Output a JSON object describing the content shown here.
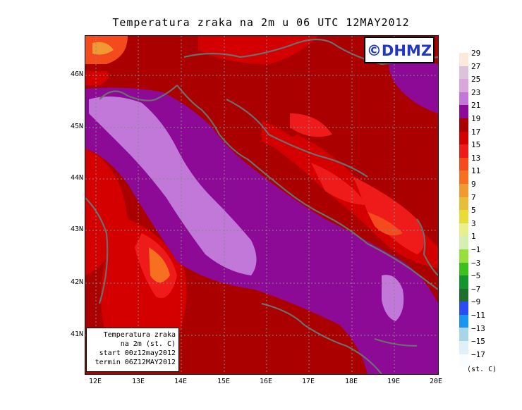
{
  "title": "Temperatura zraka na 2m u 06 UTC 12MAY2012",
  "logo": "©DHMZ",
  "infobox": {
    "line1": "Temperatura zraka",
    "line2": "na 2m (st. C)",
    "line3": "start 00z12may2012",
    "line4": "termin 06Z12MAY2012"
  },
  "lat_labels": [
    "46N",
    "45N",
    "44N",
    "43N",
    "42N",
    "41N"
  ],
  "lon_labels": [
    "12E",
    "13E",
    "14E",
    "15E",
    "16E",
    "17E",
    "18E",
    "19E",
    "20E"
  ],
  "colorbar": {
    "labels": [
      "29",
      "27",
      "25",
      "23",
      "21",
      "19",
      "17",
      "15",
      "13",
      "11",
      "9",
      "7",
      "5",
      "3",
      "1",
      "−1",
      "−3",
      "−5",
      "−7",
      "−9",
      "−11",
      "−13",
      "−15",
      "−17"
    ],
    "colors": [
      "#fbeadb",
      "#dcc3dc",
      "#dba6dc",
      "#c178d8",
      "#8c0a96",
      "#aa0000",
      "#d40000",
      "#ef1a1a",
      "#f54a1c",
      "#f6701f",
      "#f09a31",
      "#e7be3a",
      "#e8dc38",
      "#e8ef8b",
      "#d3f0b2",
      "#96e03e",
      "#3cc01e",
      "#14962c",
      "#1e6e2e",
      "#2b4cf2",
      "#1797f0",
      "#a9d6e6",
      "#dff0f8",
      "#fafdff"
    ],
    "unit": "(st. C)"
  }
}
